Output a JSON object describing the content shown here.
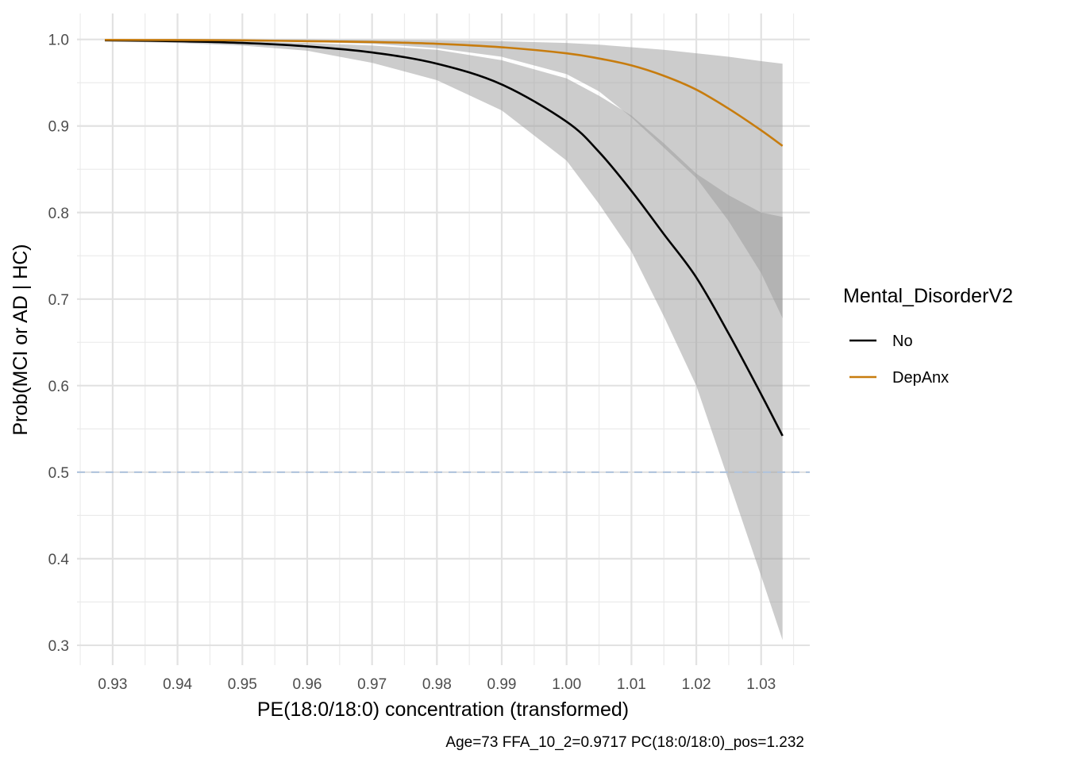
{
  "chart_data": {
    "type": "line",
    "xlabel": "PE(18:0/18:0) concentration (transformed)",
    "ylabel": "Prob(MCI or AD | HC)",
    "caption": "Age=73  FFA_10_2=0.9717  PC(18:0/18:0)_pos=1.232",
    "xlim": [
      0.9245,
      1.0375
    ],
    "ylim": [
      0.277,
      1.03
    ],
    "x_ticks": [
      0.93,
      0.94,
      0.95,
      0.96,
      0.97,
      0.98,
      0.99,
      1.0,
      1.01,
      1.02,
      1.03
    ],
    "x_tick_labels": [
      "0.93",
      "0.94",
      "0.95",
      "0.96",
      "0.97",
      "0.98",
      "0.99",
      "1.00",
      "1.01",
      "1.02",
      "1.03"
    ],
    "y_ticks": [
      0.3,
      0.4,
      0.5,
      0.6,
      0.7,
      0.8,
      0.9,
      1.0
    ],
    "y_tick_labels": [
      "0.3",
      "0.4",
      "0.5",
      "0.6",
      "0.7",
      "0.8",
      "0.9",
      "1.0"
    ],
    "grid": true,
    "reference_line": {
      "y": 0.5,
      "style": "dashed",
      "color": "#b0c4de"
    },
    "legend": {
      "title": "Mental_DisorderV2",
      "position": "right",
      "entries": [
        {
          "label": "No",
          "color": "#000000"
        },
        {
          "label": "DepAnx",
          "color": "#c77c0e"
        }
      ]
    },
    "x": [
      0.9288,
      0.94,
      0.95,
      0.96,
      0.97,
      0.98,
      0.99,
      1.0,
      1.005,
      1.01,
      1.015,
      1.02,
      1.025,
      1.03,
      1.0333
    ],
    "series": [
      {
        "name": "No",
        "color": "#000000",
        "values": [
          0.999,
          0.998,
          0.996,
          0.992,
          0.985,
          0.972,
          0.948,
          0.905,
          0.87,
          0.825,
          0.775,
          0.725,
          0.66,
          0.59,
          0.542
        ],
        "lower": [
          0.998,
          0.996,
          0.993,
          0.987,
          0.973,
          0.953,
          0.918,
          0.86,
          0.81,
          0.755,
          0.68,
          0.6,
          0.49,
          0.38,
          0.306
        ],
        "upper": [
          0.999,
          0.999,
          0.998,
          0.996,
          0.993,
          0.988,
          0.976,
          0.955,
          0.935,
          0.912,
          0.88,
          0.845,
          0.82,
          0.8,
          0.795
        ]
      },
      {
        "name": "DepAnx",
        "color": "#c77c0e",
        "values": [
          0.9995,
          0.9993,
          0.999,
          0.998,
          0.997,
          0.995,
          0.991,
          0.984,
          0.978,
          0.97,
          0.958,
          0.942,
          0.92,
          0.895,
          0.877
        ],
        "lower": [
          0.999,
          0.999,
          0.998,
          0.997,
          0.995,
          0.99,
          0.98,
          0.96,
          0.94,
          0.91,
          0.875,
          0.84,
          0.79,
          0.73,
          0.678
        ],
        "upper": [
          1.0,
          1.0,
          1.0,
          1.0,
          0.9995,
          0.999,
          0.998,
          0.996,
          0.994,
          0.991,
          0.988,
          0.984,
          0.98,
          0.975,
          0.972
        ]
      }
    ]
  }
}
